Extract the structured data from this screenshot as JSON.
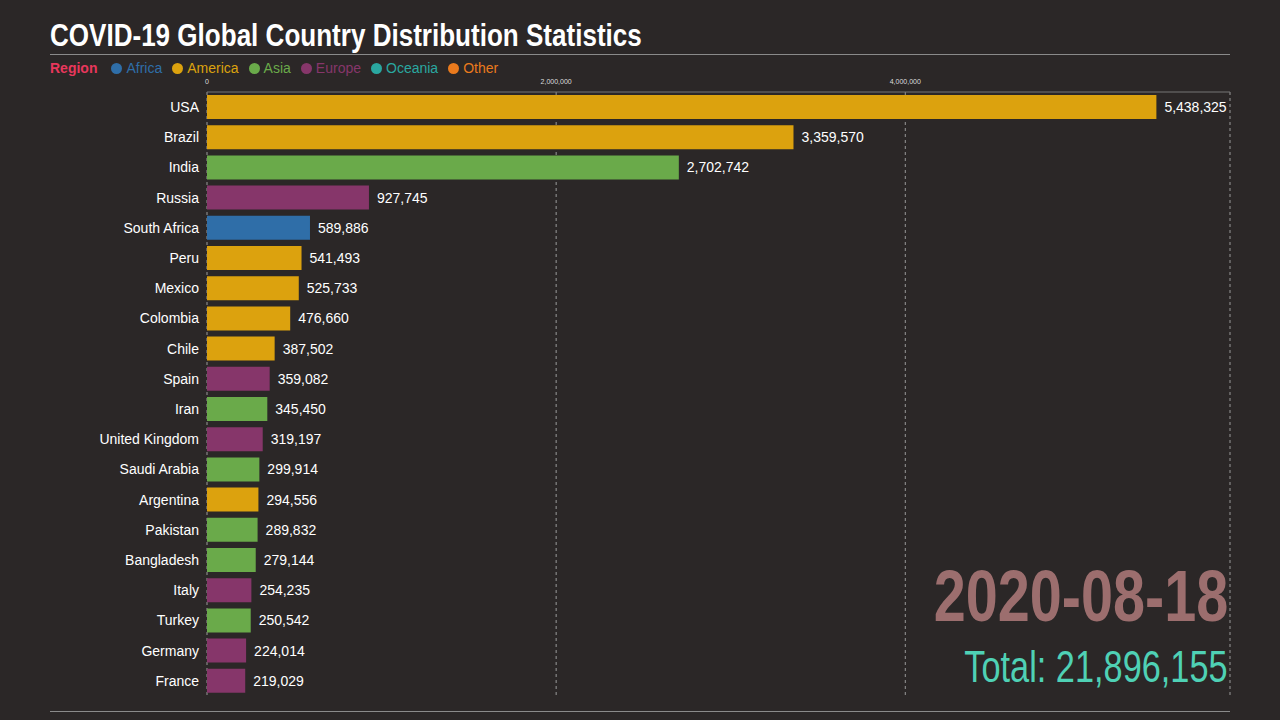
{
  "chart_data": {
    "type": "bar",
    "title": "COVID-19 Global Country Distribution Statistics",
    "orientation": "horizontal",
    "legend_title": "Region",
    "regions": [
      {
        "name": "Africa",
        "color": "#2f6ea8"
      },
      {
        "name": "America",
        "color": "#dca20e"
      },
      {
        "name": "Asia",
        "color": "#6aaa4a"
      },
      {
        "name": "Europe",
        "color": "#86366a"
      },
      {
        "name": "Oceania",
        "color": "#2aa7a0"
      },
      {
        "name": "Other",
        "color": "#ea7a1d"
      }
    ],
    "categories": [
      "USA",
      "Brazil",
      "India",
      "Russia",
      "South Africa",
      "Peru",
      "Mexico",
      "Colombia",
      "Chile",
      "Spain",
      "Iran",
      "United Kingdom",
      "Saudi Arabia",
      "Argentina",
      "Pakistan",
      "Bangladesh",
      "Italy",
      "Turkey",
      "Germany",
      "France"
    ],
    "values": [
      5438325,
      3359570,
      2702742,
      927745,
      589886,
      541493,
      525733,
      476660,
      387502,
      359082,
      345450,
      319197,
      299914,
      294556,
      289832,
      279144,
      254235,
      250542,
      224014,
      219029
    ],
    "value_labels": [
      "5,438,325",
      "3,359,570",
      "2,702,742",
      "927,745",
      "589,886",
      "541,493",
      "525,733",
      "476,660",
      "387,502",
      "359,082",
      "345,450",
      "319,197",
      "299,914",
      "294,556",
      "289,832",
      "279,144",
      "254,235",
      "250,542",
      "224,014",
      "219,029"
    ],
    "colors": [
      "#dca20e",
      "#dca20e",
      "#6aaa4a",
      "#86366a",
      "#2f6ea8",
      "#dca20e",
      "#dca20e",
      "#dca20e",
      "#dca20e",
      "#86366a",
      "#6aaa4a",
      "#86366a",
      "#6aaa4a",
      "#dca20e",
      "#6aaa4a",
      "#6aaa4a",
      "#86366a",
      "#6aaa4a",
      "#86366a",
      "#86366a"
    ],
    "data_labels": true,
    "xlim": [
      0,
      5860000
    ],
    "xticks": [
      0,
      {
        "value": 2000000,
        "label": "2,000,000"
      },
      {
        "value": 4000000,
        "label": "4,000,000"
      }
    ],
    "grid": true,
    "date": "2020-08-18",
    "total": "Total: 21,896,155"
  }
}
